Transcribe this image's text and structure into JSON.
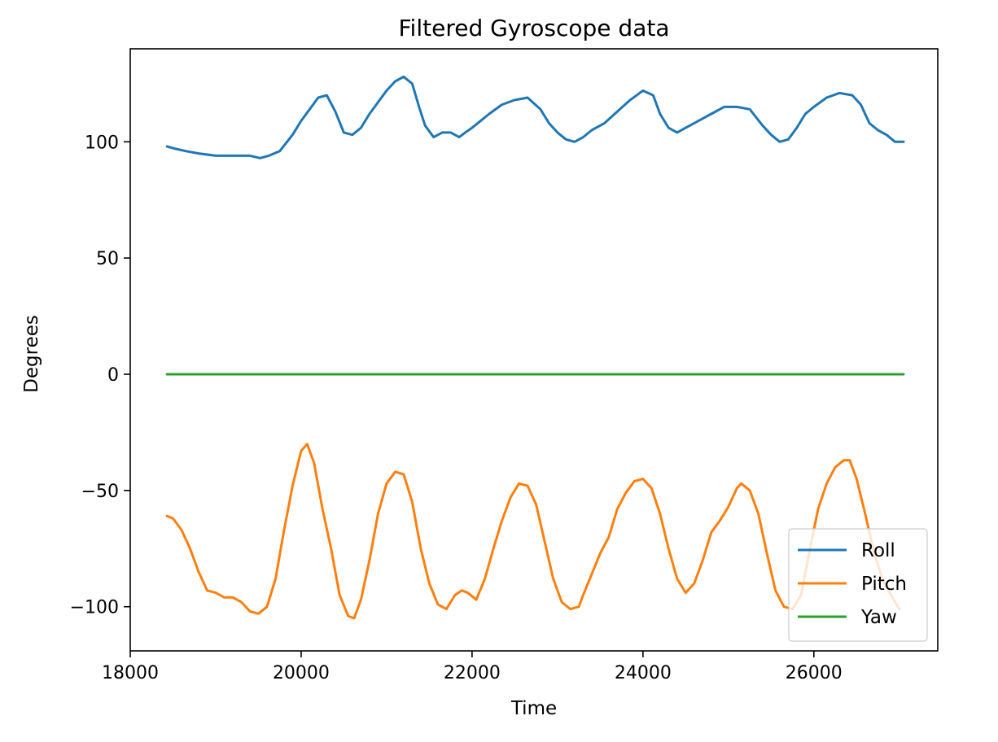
{
  "chart_data": {
    "type": "line",
    "title": "Filtered Gyroscope data",
    "xlabel": "Time",
    "ylabel": "Degrees",
    "xlim": [
      18000,
      27450
    ],
    "ylim": [
      -119,
      140
    ],
    "xticks": [
      18000,
      20000,
      22000,
      24000,
      26000
    ],
    "xtick_labels": [
      "18000",
      "20000",
      "22000",
      "24000",
      "26000"
    ],
    "yticks": [
      -100,
      -50,
      0,
      50,
      100
    ],
    "ytick_labels": [
      "−100",
      "−50",
      "0",
      "50",
      "100"
    ],
    "grid": false,
    "legend_position": "lower-right",
    "series": [
      {
        "name": "Roll",
        "color": "#1f77b4",
        "x": [
          18430,
          18530,
          18650,
          18800,
          19000,
          19200,
          19400,
          19520,
          19620,
          19750,
          19900,
          20000,
          20100,
          20200,
          20300,
          20400,
          20500,
          20600,
          20700,
          20800,
          20900,
          21000,
          21100,
          21200,
          21300,
          21380,
          21450,
          21550,
          21650,
          21750,
          21850,
          21920,
          22000,
          22100,
          22200,
          22350,
          22500,
          22650,
          22800,
          22900,
          23000,
          23100,
          23200,
          23300,
          23400,
          23550,
          23700,
          23850,
          24000,
          24120,
          24200,
          24300,
          24400,
          24500,
          24600,
          24700,
          24800,
          24950,
          25100,
          25250,
          25400,
          25500,
          25600,
          25700,
          25800,
          25900,
          26000,
          26150,
          26300,
          26450,
          26550,
          26650,
          26750,
          26850,
          26950,
          27050
        ],
        "y": [
          98,
          97,
          96,
          95,
          94,
          94,
          94,
          93,
          94,
          96,
          103,
          109,
          114,
          119,
          120,
          113,
          104,
          103,
          106,
          112,
          117,
          122,
          126,
          128,
          125,
          115,
          107,
          102,
          104,
          104,
          102,
          104,
          106,
          109,
          112,
          116,
          118,
          119,
          114,
          108,
          104,
          101,
          100,
          102,
          105,
          108,
          113,
          118,
          122,
          120,
          112,
          106,
          104,
          106,
          108,
          110,
          112,
          115,
          115,
          114,
          107,
          103,
          100,
          101,
          106,
          112,
          115,
          119,
          121,
          120,
          116,
          108,
          105,
          103,
          100,
          100
        ]
      },
      {
        "name": "Pitch",
        "color": "#ff7f0e",
        "x": [
          18430,
          18500,
          18600,
          18700,
          18800,
          18900,
          19000,
          19100,
          19200,
          19300,
          19400,
          19500,
          19600,
          19700,
          19800,
          19900,
          20000,
          20070,
          20150,
          20250,
          20350,
          20450,
          20550,
          20620,
          20700,
          20800,
          20900,
          21000,
          21100,
          21200,
          21300,
          21400,
          21500,
          21600,
          21700,
          21800,
          21880,
          21950,
          22050,
          22150,
          22250,
          22350,
          22450,
          22550,
          22650,
          22750,
          22850,
          22950,
          23050,
          23150,
          23250,
          23300,
          23400,
          23500,
          23600,
          23700,
          23800,
          23900,
          24000,
          24100,
          24200,
          24300,
          24400,
          24500,
          24600,
          24700,
          24800,
          24900,
          25000,
          25100,
          25150,
          25250,
          25350,
          25450,
          25550,
          25650,
          25750,
          25850,
          25950,
          26050,
          26150,
          26250,
          26350,
          26420,
          26500,
          26600,
          26700,
          26800,
          26900,
          27000
        ],
        "y": [
          -61,
          -62,
          -67,
          -75,
          -85,
          -93,
          -94,
          -96,
          -96,
          -98,
          -102,
          -103,
          -100,
          -88,
          -67,
          -48,
          -33,
          -30,
          -38,
          -58,
          -75,
          -95,
          -104,
          -105,
          -97,
          -80,
          -60,
          -47,
          -42,
          -43,
          -55,
          -75,
          -90,
          -99,
          -101,
          -95,
          -93,
          -94,
          -97,
          -88,
          -75,
          -63,
          -53,
          -47,
          -48,
          -56,
          -72,
          -88,
          -98,
          -101,
          -100,
          -95,
          -86,
          -77,
          -70,
          -58,
          -51,
          -46,
          -45,
          -49,
          -60,
          -75,
          -88,
          -94,
          -90,
          -80,
          -68,
          -63,
          -57,
          -49,
          -47,
          -50,
          -60,
          -77,
          -93,
          -100,
          -101,
          -95,
          -76,
          -58,
          -47,
          -40,
          -37,
          -37,
          -45,
          -60,
          -76,
          -88,
          -95,
          -101
        ]
      },
      {
        "name": "Yaw",
        "color": "#2ca02c",
        "x": [
          18430,
          27050
        ],
        "y": [
          0,
          0
        ]
      }
    ]
  }
}
